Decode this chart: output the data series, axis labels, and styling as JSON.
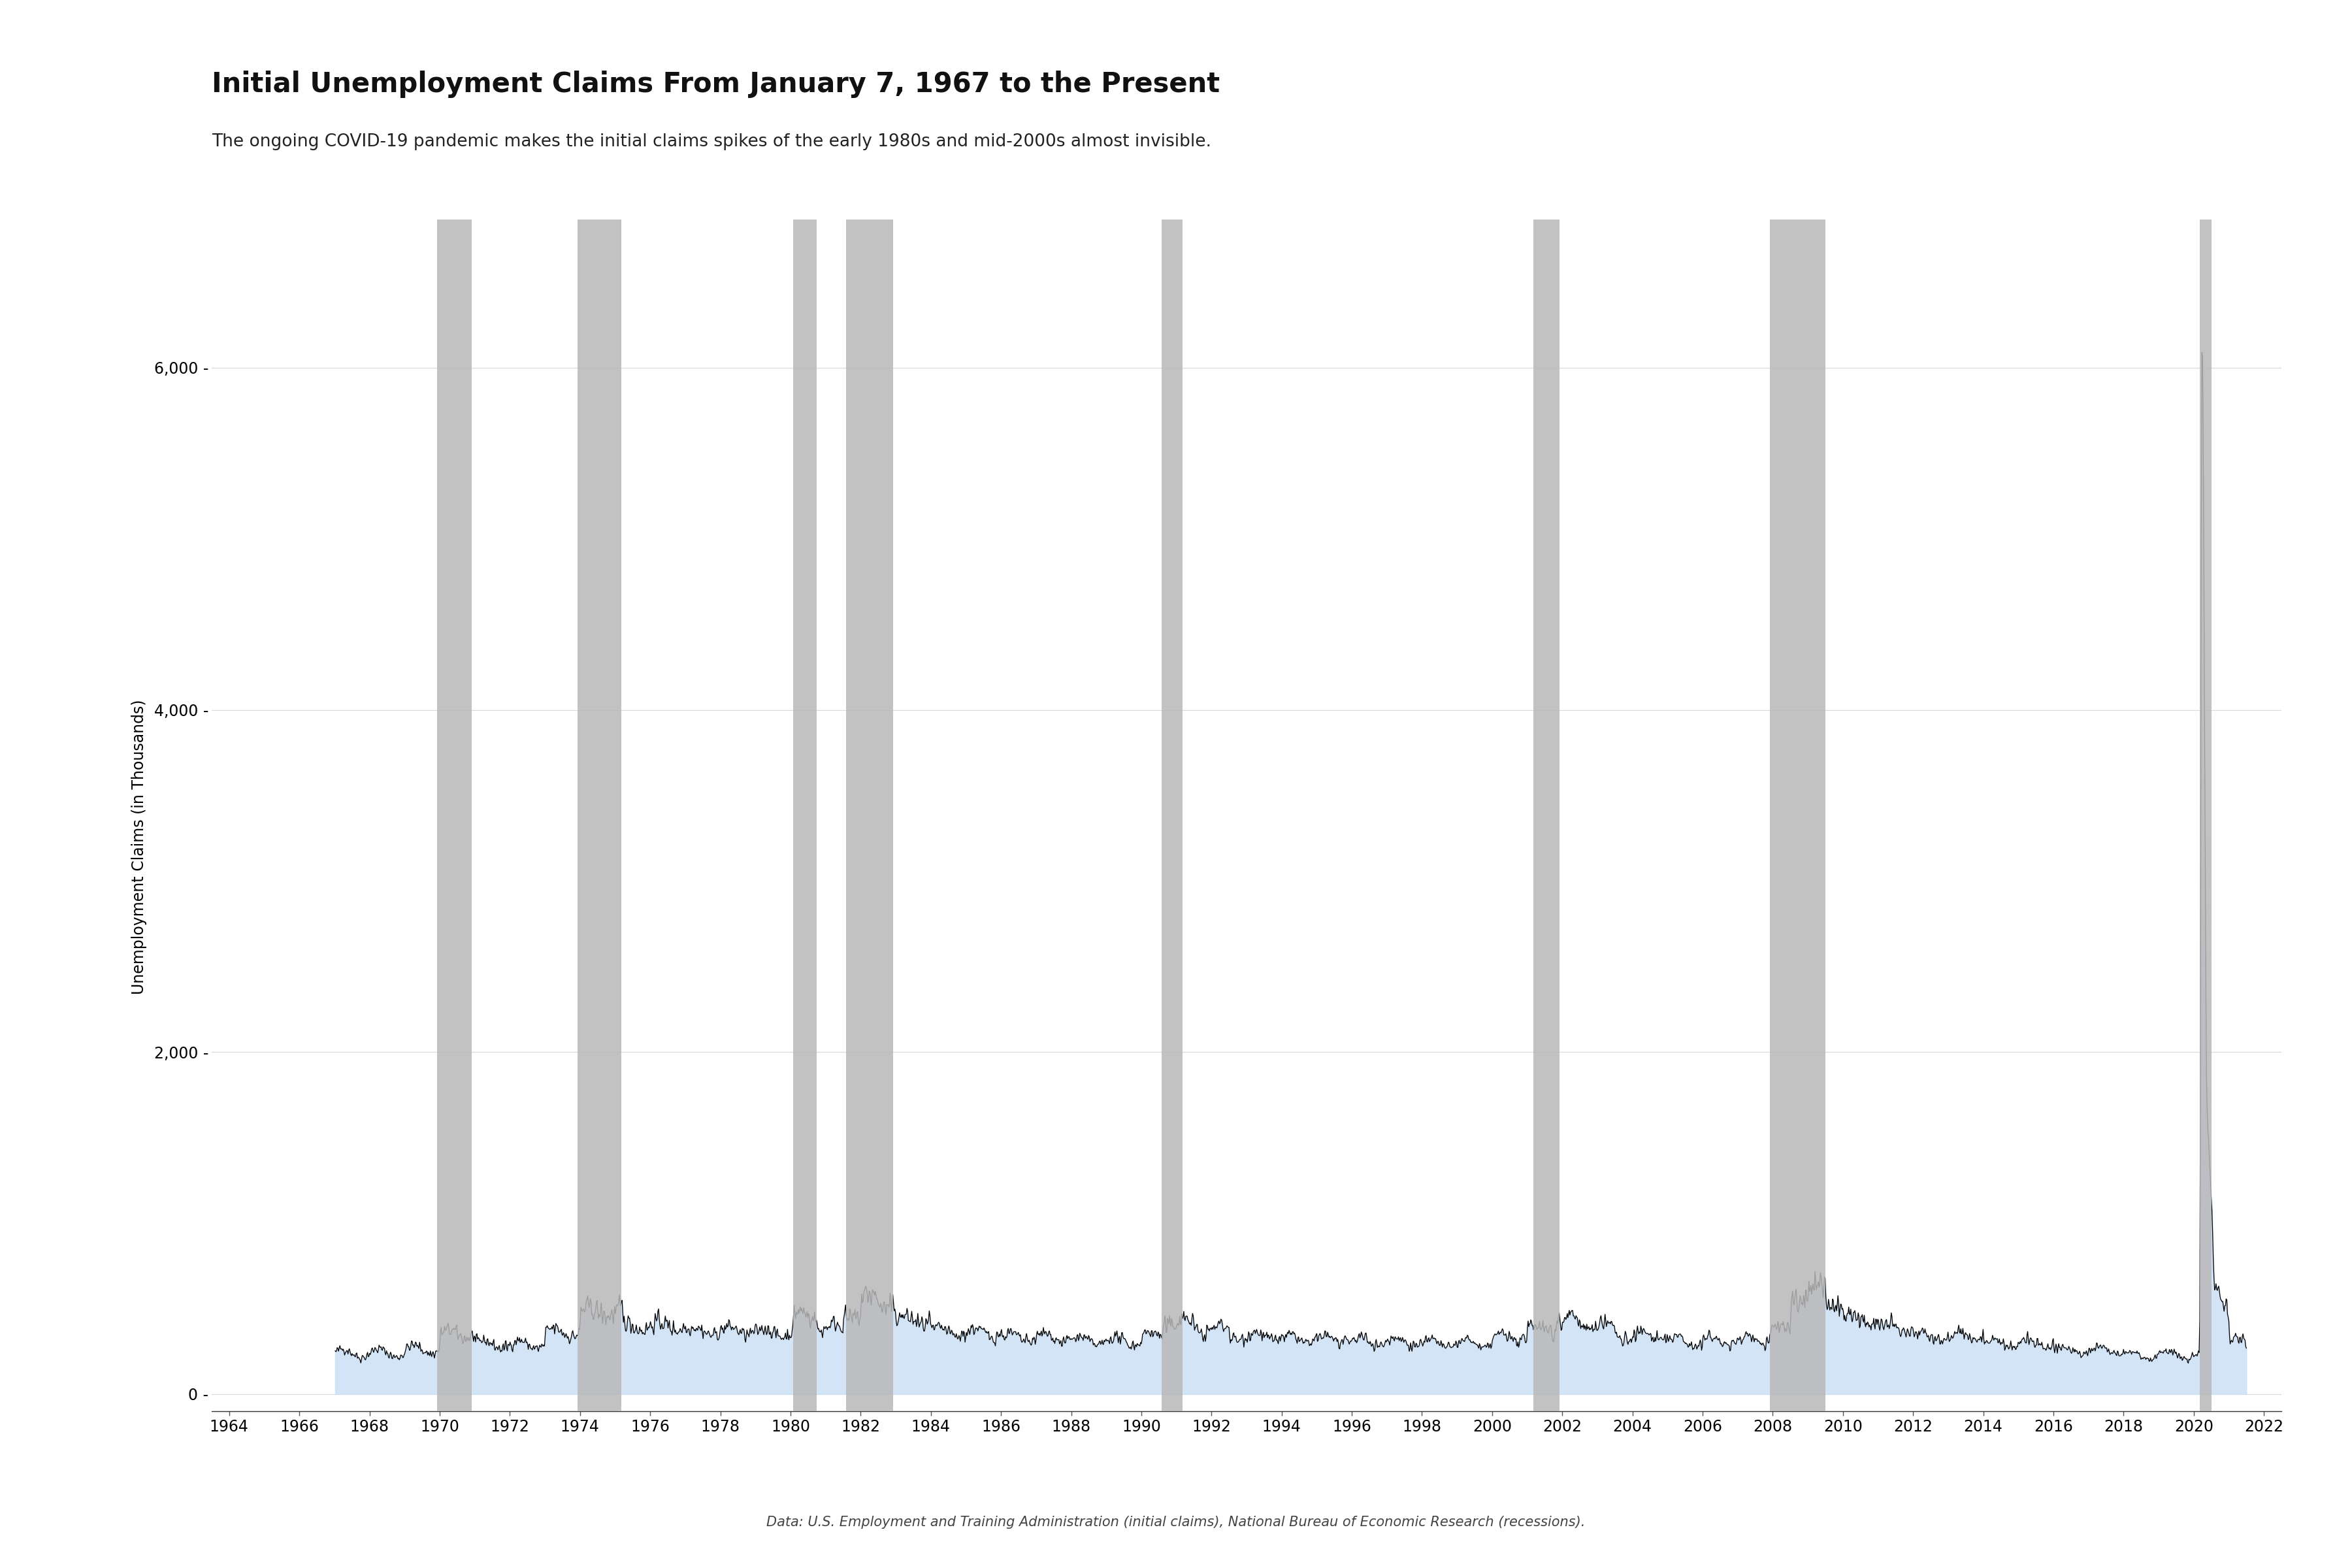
{
  "title": "Initial Unemployment Claims From January 7, 1967 to the Present",
  "subtitle": "The ongoing COVID-19 pandemic makes the initial claims spikes of the early 1980s and mid-2000s almost invisible.",
  "ylabel": "Unemployment Claims (in Thousands)",
  "source": "Data: U.S. Employment and Training Administration (initial claims), National Bureau of Economic Research (recessions).",
  "yticks": [
    0,
    2000,
    4000,
    6000
  ],
  "xlim_start": 1963.5,
  "xlim_end": 2022.5,
  "ylim_min": -100,
  "ylim_max": 6500,
  "recession_bands": [
    [
      1969.92,
      1970.92
    ],
    [
      1973.92,
      1975.17
    ],
    [
      1980.08,
      1980.75
    ],
    [
      1981.58,
      1982.92
    ],
    [
      1990.58,
      1991.17
    ],
    [
      2001.17,
      2001.92
    ],
    [
      2007.92,
      2009.5
    ],
    [
      2020.17,
      2020.5
    ]
  ],
  "background_color": "#ffffff",
  "recession_color": "#b8b8b8",
  "recession_alpha": 0.85,
  "line_color": "#000000",
  "fill_color": "#cce0f5",
  "fill_alpha": 0.85,
  "grid_color": "#d8d8d8",
  "title_fontsize": 30,
  "subtitle_fontsize": 19,
  "ylabel_fontsize": 17,
  "source_fontsize": 15,
  "tick_fontsize": 17
}
